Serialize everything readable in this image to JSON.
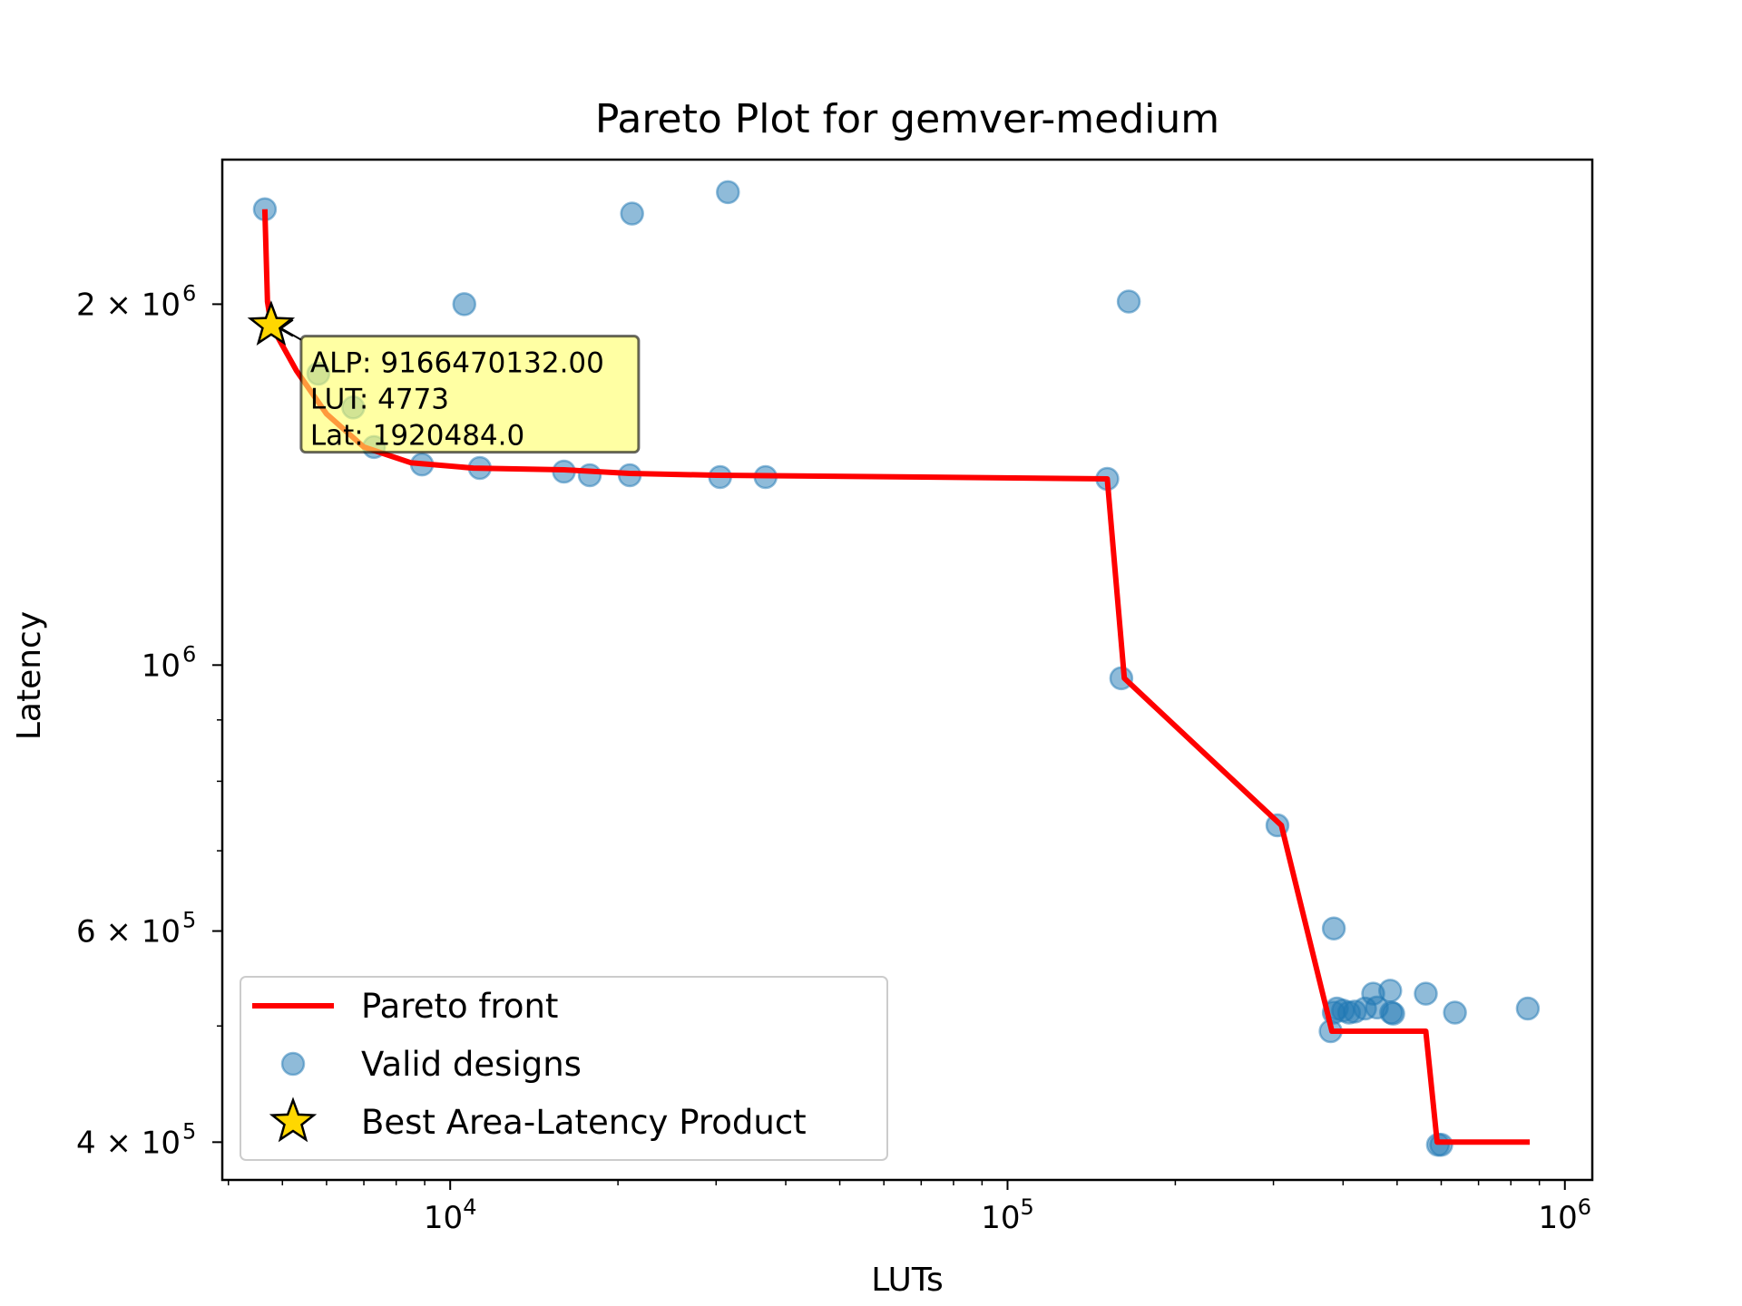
{
  "chart_data": {
    "type": "scatter",
    "title": "Pareto Plot for gemver-medium",
    "xlabel": "LUTs",
    "ylabel": "Latency",
    "xscale": "log",
    "yscale": "log",
    "xlim": [
      3900,
      1120000
    ],
    "ylim": [
      372000,
      2640000
    ],
    "grid": false,
    "legend_position": "lower-left",
    "x_ticks": [
      {
        "value": 10000,
        "base": "10",
        "exp": "4"
      },
      {
        "value": 100000,
        "base": "10",
        "exp": "5"
      },
      {
        "value": 1000000,
        "base": "10",
        "exp": "6"
      }
    ],
    "y_ticks": [
      {
        "value": 400000,
        "mant": "4 × 10",
        "exp": "5"
      },
      {
        "value": 600000,
        "mant": "6 × 10",
        "exp": "5"
      },
      {
        "value": 1000000,
        "mant": "10",
        "exp": "6"
      },
      {
        "value": 2000000,
        "mant": "2 × 10",
        "exp": "6"
      }
    ],
    "legend": [
      {
        "label": "Pareto front",
        "kind": "line"
      },
      {
        "label": "Valid designs",
        "kind": "marker"
      },
      {
        "label": "Best Area-Latency Product",
        "kind": "star"
      }
    ],
    "series": [
      {
        "name": "Valid designs",
        "color": "#1f77b4",
        "points": [
          {
            "x": 4650,
            "y": 2400000
          },
          {
            "x": 10600,
            "y": 2000000
          },
          {
            "x": 21200,
            "y": 2380000
          },
          {
            "x": 31500,
            "y": 2480000
          },
          {
            "x": 165000,
            "y": 2010000
          },
          {
            "x": 5800,
            "y": 1750000
          },
          {
            "x": 6700,
            "y": 1640000
          },
          {
            "x": 7300,
            "y": 1520000
          },
          {
            "x": 8900,
            "y": 1470000
          },
          {
            "x": 11300,
            "y": 1460000
          },
          {
            "x": 16000,
            "y": 1450000
          },
          {
            "x": 17800,
            "y": 1440000
          },
          {
            "x": 21000,
            "y": 1440000
          },
          {
            "x": 30500,
            "y": 1435000
          },
          {
            "x": 36800,
            "y": 1435000
          },
          {
            "x": 151000,
            "y": 1430000
          },
          {
            "x": 160000,
            "y": 975000
          },
          {
            "x": 305000,
            "y": 735000
          },
          {
            "x": 385000,
            "y": 603000
          },
          {
            "x": 380000,
            "y": 495000
          },
          {
            "x": 385000,
            "y": 513000
          },
          {
            "x": 390000,
            "y": 517000
          },
          {
            "x": 400000,
            "y": 515000
          },
          {
            "x": 410000,
            "y": 513000
          },
          {
            "x": 420000,
            "y": 514000
          },
          {
            "x": 438000,
            "y": 517000
          },
          {
            "x": 453000,
            "y": 532000
          },
          {
            "x": 460000,
            "y": 518000
          },
          {
            "x": 486000,
            "y": 535000
          },
          {
            "x": 488000,
            "y": 513000
          },
          {
            "x": 492000,
            "y": 512000
          },
          {
            "x": 563000,
            "y": 532000
          },
          {
            "x": 635000,
            "y": 513000
          },
          {
            "x": 592000,
            "y": 398000
          },
          {
            "x": 600000,
            "y": 398000
          },
          {
            "x": 858000,
            "y": 517000
          }
        ]
      },
      {
        "name": "Pareto front",
        "color": "#ff0000",
        "points": [
          {
            "x": 4650,
            "y": 2400000
          },
          {
            "x": 4700,
            "y": 2010000
          },
          {
            "x": 4773,
            "y": 1920484
          },
          {
            "x": 5300,
            "y": 1760000
          },
          {
            "x": 6000,
            "y": 1620000
          },
          {
            "x": 7000,
            "y": 1520000
          },
          {
            "x": 8500,
            "y": 1475000
          },
          {
            "x": 11000,
            "y": 1460000
          },
          {
            "x": 16000,
            "y": 1455000
          },
          {
            "x": 21000,
            "y": 1445000
          },
          {
            "x": 30000,
            "y": 1440000
          },
          {
            "x": 60000,
            "y": 1436000
          },
          {
            "x": 151000,
            "y": 1430000
          },
          {
            "x": 162000,
            "y": 975000
          },
          {
            "x": 310000,
            "y": 735000
          },
          {
            "x": 382000,
            "y": 495000
          },
          {
            "x": 563000,
            "y": 495000
          },
          {
            "x": 590000,
            "y": 400000
          },
          {
            "x": 865000,
            "y": 400000
          }
        ]
      }
    ],
    "best_point": {
      "name": "Best Area-Latency Product",
      "x": 4773,
      "y": 1920484,
      "color": "#ffd700"
    },
    "annotation": {
      "lines": [
        "ALP: 9166470132.00",
        "LUT: 4773",
        "Lat: 1920484.0"
      ],
      "background": "#ffff66"
    }
  }
}
